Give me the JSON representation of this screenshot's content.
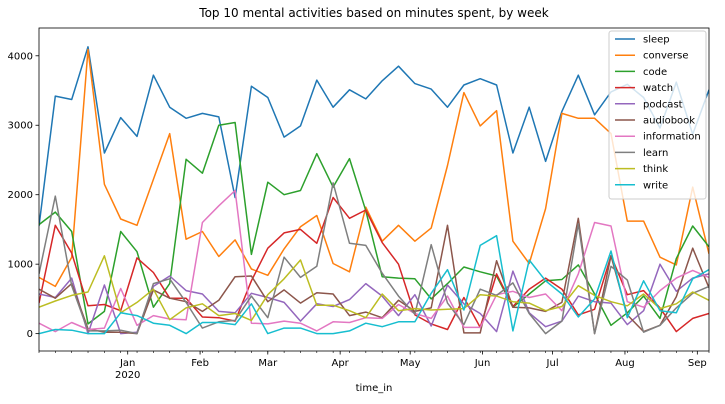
{
  "chart_data": {
    "type": "line",
    "title": "Top 10 mental activities based on minutes spent, by week",
    "xlabel": "time_in",
    "ylabel": "",
    "xlim": [
      "2019-11-24",
      "2020-09-06"
    ],
    "ylim": [
      -250,
      4400
    ],
    "grid": false,
    "legend_position": "top-right",
    "x": [
      "2019-11-24",
      "2019-12-01",
      "2019-12-08",
      "2019-12-15",
      "2019-12-22",
      "2019-12-29",
      "2020-01-05",
      "2020-01-12",
      "2020-01-19",
      "2020-01-26",
      "2020-02-02",
      "2020-02-09",
      "2020-02-16",
      "2020-02-23",
      "2020-03-01",
      "2020-03-08",
      "2020-03-15",
      "2020-03-22",
      "2020-03-29",
      "2020-04-05",
      "2020-04-12",
      "2020-04-19",
      "2020-04-26",
      "2020-05-03",
      "2020-05-10",
      "2020-05-17",
      "2020-05-24",
      "2020-05-31",
      "2020-06-07",
      "2020-06-14",
      "2020-06-21",
      "2020-06-28",
      "2020-07-05",
      "2020-07-12",
      "2020-07-19",
      "2020-07-26",
      "2020-08-02",
      "2020-08-09",
      "2020-08-16",
      "2020-08-23",
      "2020-08-30",
      "2020-09-06"
    ],
    "x_ticks": [
      {
        "date": "2020-01-01",
        "label": "Jan",
        "sublabel": "2020"
      },
      {
        "date": "2020-02-01",
        "label": "Feb",
        "sublabel": ""
      },
      {
        "date": "2020-03-01",
        "label": "Mar",
        "sublabel": ""
      },
      {
        "date": "2020-04-01",
        "label": "Apr",
        "sublabel": ""
      },
      {
        "date": "2020-05-01",
        "label": "May",
        "sublabel": ""
      },
      {
        "date": "2020-06-01",
        "label": "Jun",
        "sublabel": ""
      },
      {
        "date": "2020-07-01",
        "label": "Jul",
        "sublabel": ""
      },
      {
        "date": "2020-08-01",
        "label": "Aug",
        "sublabel": ""
      },
      {
        "date": "2020-09-01",
        "label": "Sep",
        "sublabel": ""
      }
    ],
    "y_ticks": [
      0,
      1000,
      2000,
      3000,
      4000
    ],
    "series": [
      {
        "name": "sleep",
        "color": "#1f77b4",
        "values": [
          1550,
          3420,
          3370,
          4130,
          2600,
          3110,
          2840,
          3720,
          3260,
          3100,
          3170,
          3120,
          1960,
          3560,
          3400,
          2830,
          2990,
          3650,
          3260,
          3510,
          3380,
          3640,
          3850,
          3600,
          3520,
          3260,
          3580,
          3670,
          3580,
          2600,
          3260,
          2480,
          3200,
          3720,
          3150,
          3480,
          3590,
          3400,
          2960,
          3620,
          2870,
          3510
        ]
      },
      {
        "name": "converse",
        "color": "#ff7f0e",
        "values": [
          810,
          680,
          1100,
          4090,
          2150,
          1650,
          1560,
          2220,
          2880,
          1360,
          1470,
          1110,
          1350,
          930,
          840,
          1220,
          1540,
          1700,
          1010,
          890,
          1820,
          1330,
          1560,
          1330,
          1520,
          2420,
          3470,
          2990,
          3210,
          1330,
          1010,
          1800,
          3170,
          3100,
          3100,
          2880,
          1620,
          1620,
          1100,
          990,
          2110,
          1150
        ]
      },
      {
        "name": "code",
        "color": "#2ca02c",
        "values": [
          1570,
          1750,
          1470,
          140,
          320,
          1470,
          1180,
          380,
          720,
          2510,
          2310,
          3000,
          3040,
          1140,
          2180,
          2000,
          2060,
          2590,
          2110,
          2520,
          1770,
          820,
          800,
          790,
          500,
          720,
          960,
          890,
          830,
          380,
          570,
          760,
          780,
          990,
          570,
          120,
          300,
          540,
          220,
          1080,
          1550,
          1250
        ]
      },
      {
        "name": "watch",
        "color": "#d62728",
        "values": [
          440,
          1560,
          1160,
          400,
          420,
          330,
          1090,
          880,
          510,
          510,
          240,
          230,
          180,
          760,
          1230,
          1450,
          1500,
          1300,
          1960,
          1660,
          1780,
          1310,
          1000,
          270,
          140,
          60,
          520,
          90,
          860,
          390,
          640,
          800,
          640,
          270,
          350,
          1120,
          560,
          620,
          370,
          30,
          220,
          290
        ]
      },
      {
        "name": "podcast",
        "color": "#9467bd",
        "values": [
          570,
          520,
          800,
          0,
          700,
          0,
          20,
          680,
          830,
          620,
          570,
          320,
          300,
          580,
          520,
          450,
          180,
          430,
          390,
          490,
          720,
          540,
          260,
          560,
          110,
          700,
          430,
          290,
          30,
          900,
          300,
          100,
          180,
          540,
          460,
          440,
          130,
          330,
          1000,
          610,
          800,
          860
        ]
      },
      {
        "name": "audiobook",
        "color": "#8c564b",
        "values": [
          640,
          510,
          720,
          70,
          20,
          20,
          0,
          630,
          510,
          460,
          320,
          480,
          820,
          830,
          460,
          630,
          440,
          590,
          570,
          260,
          310,
          230,
          480,
          320,
          370,
          1560,
          10,
          10,
          1050,
          380,
          370,
          320,
          450,
          1660,
          0,
          1120,
          270,
          30,
          120,
          530,
          1230,
          660
        ]
      },
      {
        "name": "information",
        "color": "#e377c2",
        "values": [
          150,
          30,
          160,
          60,
          80,
          650,
          120,
          260,
          210,
          200,
          1600,
          1840,
          2060,
          150,
          140,
          180,
          150,
          40,
          170,
          160,
          230,
          220,
          420,
          290,
          220,
          540,
          90,
          90,
          560,
          610,
          520,
          570,
          330,
          860,
          1600,
          1550,
          460,
          380,
          620,
          800,
          910,
          810
        ]
      },
      {
        "name": "learn",
        "color": "#7f7f7f",
        "values": [
          860,
          1980,
          690,
          40,
          40,
          50,
          0,
          720,
          790,
          450,
          80,
          170,
          190,
          540,
          230,
          1100,
          810,
          970,
          2170,
          1300,
          1270,
          870,
          540,
          280,
          1280,
          440,
          130,
          640,
          550,
          730,
          290,
          0,
          180,
          1580,
          0,
          970,
          770,
          20,
          120,
          370,
          580,
          680
        ]
      },
      {
        "name": "think",
        "color": "#bcbd22",
        "values": [
          380,
          470,
          550,
          600,
          1120,
          300,
          450,
          640,
          200,
          370,
          430,
          260,
          290,
          190,
          560,
          790,
          1060,
          410,
          410,
          330,
          230,
          570,
          330,
          360,
          340,
          350,
          360,
          560,
          540,
          460,
          440,
          330,
          390,
          690,
          550,
          460,
          400,
          570,
          360,
          430,
          600,
          480
        ]
      },
      {
        "name": "write",
        "color": "#17becf",
        "values": [
          0,
          60,
          50,
          0,
          0,
          300,
          260,
          150,
          120,
          0,
          160,
          160,
          130,
          430,
          0,
          80,
          80,
          0,
          0,
          40,
          150,
          100,
          170,
          170,
          580,
          920,
          340,
          1270,
          1410,
          40,
          1060,
          760,
          570,
          240,
          500,
          1190,
          230,
          760,
          330,
          300,
          790,
          920
        ]
      }
    ]
  }
}
